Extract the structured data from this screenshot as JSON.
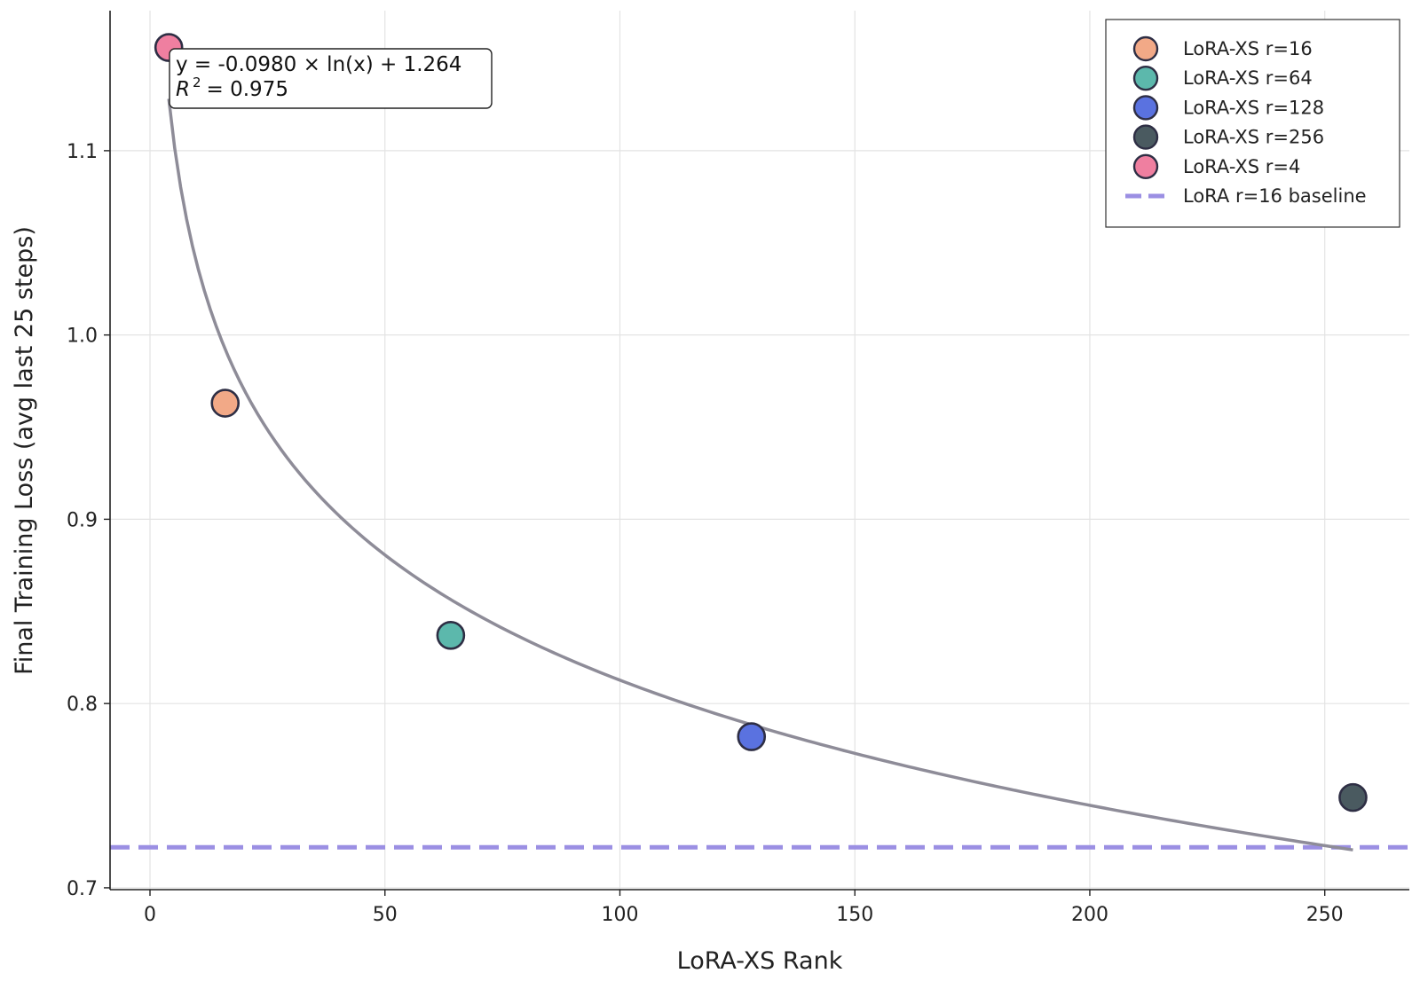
{
  "chart_data": {
    "type": "scatter",
    "xlabel": "LoRA-XS Rank",
    "ylabel": "Final Training Loss (avg last 25 steps)",
    "xlim": [
      -8.5,
      268
    ],
    "ylim": [
      0.699,
      1.176
    ],
    "xticks": [
      0,
      50,
      100,
      150,
      200,
      250
    ],
    "yticks": [
      0.7,
      0.8,
      0.9,
      1.0,
      1.1
    ],
    "xtick_labels": [
      "0",
      "50",
      "100",
      "150",
      "200",
      "250"
    ],
    "ytick_labels": [
      "0.7",
      "0.8",
      "0.9",
      "1.0",
      "1.1"
    ],
    "grid": true,
    "legend_position": "top-right",
    "series": [
      {
        "name": "LoRA-XS r=16",
        "x": 16,
        "y": 0.963,
        "color": "#f2a987"
      },
      {
        "name": "LoRA-XS r=64",
        "x": 64,
        "y": 0.837,
        "color": "#5cb8ac"
      },
      {
        "name": "LoRA-XS r=128",
        "x": 128,
        "y": 0.782,
        "color": "#5a72e0"
      },
      {
        "name": "LoRA-XS r=256",
        "x": 256,
        "y": 0.749,
        "color": "#4a5a60"
      },
      {
        "name": "LoRA-XS r=4",
        "x": 4,
        "y": 1.156,
        "color": "#ef7fa0"
      }
    ],
    "baseline": {
      "name": "LoRA r=16 baseline",
      "y": 0.722,
      "color": "#9b8fe3"
    },
    "fit": {
      "equation": "y = -0.0980 × ln(x) + 1.264",
      "r2_symbol": "R",
      "r2_exponent": "2",
      "r2_value": "= 0.975",
      "a": -0.098,
      "b": 1.264,
      "x_range": [
        4,
        256
      ],
      "color": "#8e8c98"
    },
    "marker_edge_color": "#2e2e44"
  }
}
